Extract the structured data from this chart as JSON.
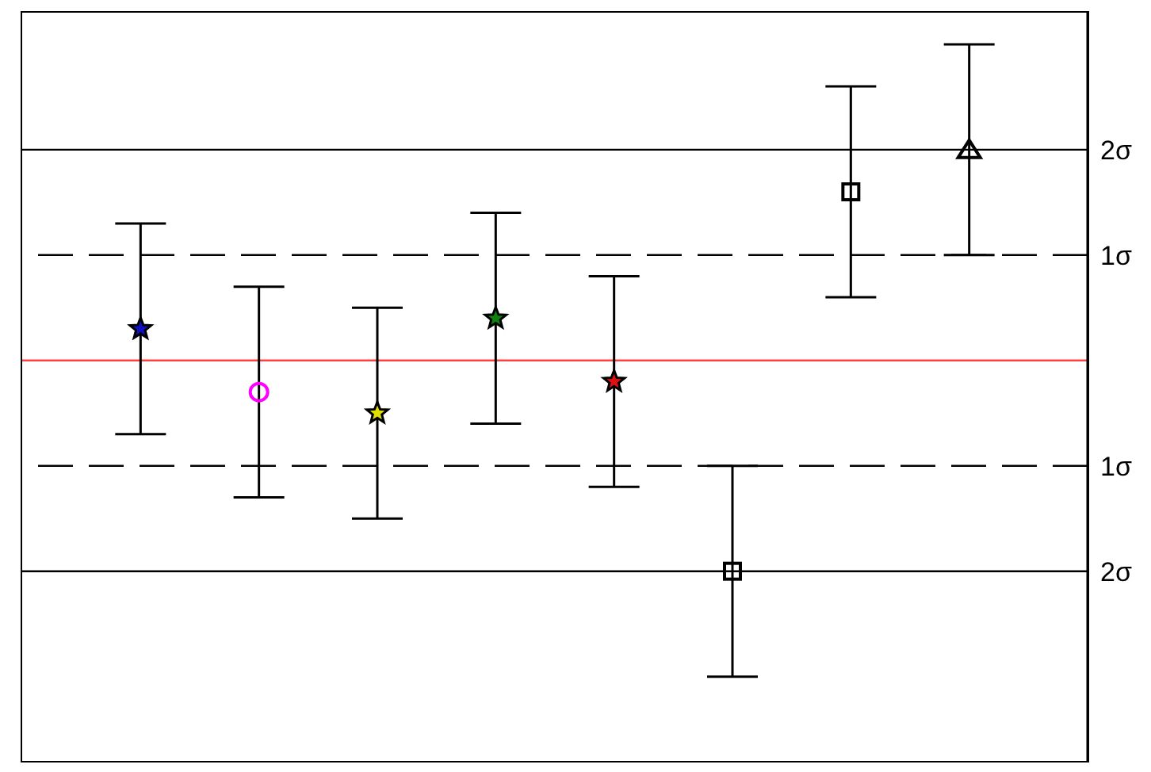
{
  "chart_data": {
    "type": "scatter",
    "categories": [
      null,
      null,
      null,
      null,
      null,
      null,
      null,
      null
    ],
    "series": [
      {
        "color": "#1010c0",
        "marker": "star",
        "values": [
          0.3,
          null,
          null,
          null,
          null,
          null,
          null,
          null
        ],
        "errors": [
          1,
          null,
          null,
          null,
          null,
          null,
          null,
          null
        ]
      },
      {
        "color": "#ff00ff",
        "marker": "circle",
        "values": [
          null,
          -0.3,
          null,
          null,
          null,
          null,
          null,
          null
        ],
        "errors": [
          null,
          1,
          null,
          null,
          null,
          null,
          null,
          null
        ]
      },
      {
        "color": "#e0e000",
        "marker": "star",
        "values": [
          null,
          null,
          -0.5,
          null,
          null,
          null,
          null,
          null
        ],
        "errors": [
          null,
          null,
          1,
          null,
          null,
          null,
          null,
          null
        ]
      },
      {
        "color": "#108010",
        "marker": "star",
        "values": [
          null,
          null,
          null,
          0.4,
          null,
          null,
          null,
          null
        ],
        "errors": [
          null,
          null,
          null,
          1,
          null,
          null,
          null,
          null
        ]
      },
      {
        "color": "#e01010",
        "marker": "star",
        "values": [
          null,
          null,
          null,
          null,
          -0.2,
          null,
          null,
          null
        ],
        "errors": [
          null,
          null,
          null,
          null,
          1,
          null,
          null,
          null
        ]
      },
      {
        "color": "#000000",
        "marker": "square",
        "values": [
          null,
          null,
          null,
          null,
          null,
          -2.0,
          null,
          null
        ],
        "errors": [
          null,
          null,
          null,
          null,
          null,
          1,
          null,
          null
        ]
      },
      {
        "color": "#000000",
        "marker": "square",
        "values": [
          null,
          null,
          null,
          null,
          null,
          null,
          1.6,
          null
        ],
        "errors": [
          null,
          null,
          null,
          null,
          null,
          null,
          1,
          null
        ]
      },
      {
        "color": "#000000",
        "marker": "triangle",
        "values": [
          null,
          null,
          null,
          null,
          null,
          null,
          null,
          2.0
        ],
        "errors": [
          null,
          null,
          null,
          null,
          null,
          null,
          null,
          1
        ]
      }
    ],
    "ylim": [
      -3.8,
      3.3
    ],
    "yticks": [
      {
        "value": -2,
        "label": "2σ"
      },
      {
        "value": -1,
        "label": "1σ"
      },
      {
        "value": 1,
        "label": "1σ"
      },
      {
        "value": 2,
        "label": "2σ"
      }
    ],
    "tick_labels": "y",
    "ref_lines": [
      {
        "axis": "y",
        "value": 0,
        "label": null,
        "color": "#ff4040",
        "line_style": "solid"
      },
      {
        "axis": "y",
        "value": 1,
        "label": null,
        "color": "#000000",
        "line_style": "dashed"
      },
      {
        "axis": "y",
        "value": -1,
        "label": null,
        "color": "#000000",
        "line_style": "dashed"
      },
      {
        "axis": "y",
        "value": 2,
        "label": null,
        "color": "#000000",
        "line_style": "solid"
      },
      {
        "axis": "y",
        "value": -2,
        "label": null,
        "color": "#000000",
        "line_style": "solid"
      }
    ]
  }
}
